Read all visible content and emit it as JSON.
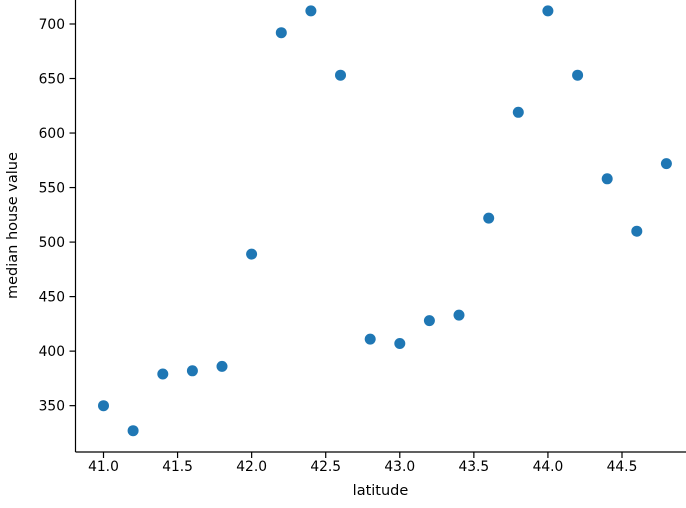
{
  "chart_data": {
    "type": "scatter",
    "title": "",
    "xlabel": "latitude",
    "ylabel": "median house value",
    "x": [
      41.0,
      41.2,
      41.4,
      41.6,
      41.8,
      42.0,
      42.2,
      42.4,
      42.6,
      42.8,
      43.0,
      43.2,
      43.4,
      43.6,
      43.8,
      44.0,
      44.2,
      44.4,
      44.6,
      44.8
    ],
    "y": [
      350,
      327,
      379,
      382,
      386,
      489,
      692,
      712,
      653,
      411,
      407,
      428,
      433,
      522,
      619,
      712,
      653,
      558,
      510,
      572
    ],
    "xlim": [
      40.811,
      44.932
    ],
    "ylim": [
      307.5,
      722.0
    ],
    "xtick_values": [
      41.0,
      41.5,
      42.0,
      42.5,
      43.0,
      43.5,
      44.0,
      44.5
    ],
    "xtick_labels": [
      "41.0",
      "41.5",
      "42.0",
      "42.5",
      "43.0",
      "43.5",
      "44.0",
      "44.5"
    ],
    "ytick_values": [
      350,
      400,
      450,
      500,
      550,
      600,
      650,
      700
    ],
    "ytick_labels": [
      "350",
      "400",
      "450",
      "500",
      "550",
      "600",
      "650",
      "700"
    ],
    "grid": false,
    "legend": null,
    "marker": {
      "shape": "circle",
      "color": "#1f77b4",
      "radius_px": 5.5
    },
    "axis_color": "#000000",
    "background": "#ffffff"
  }
}
